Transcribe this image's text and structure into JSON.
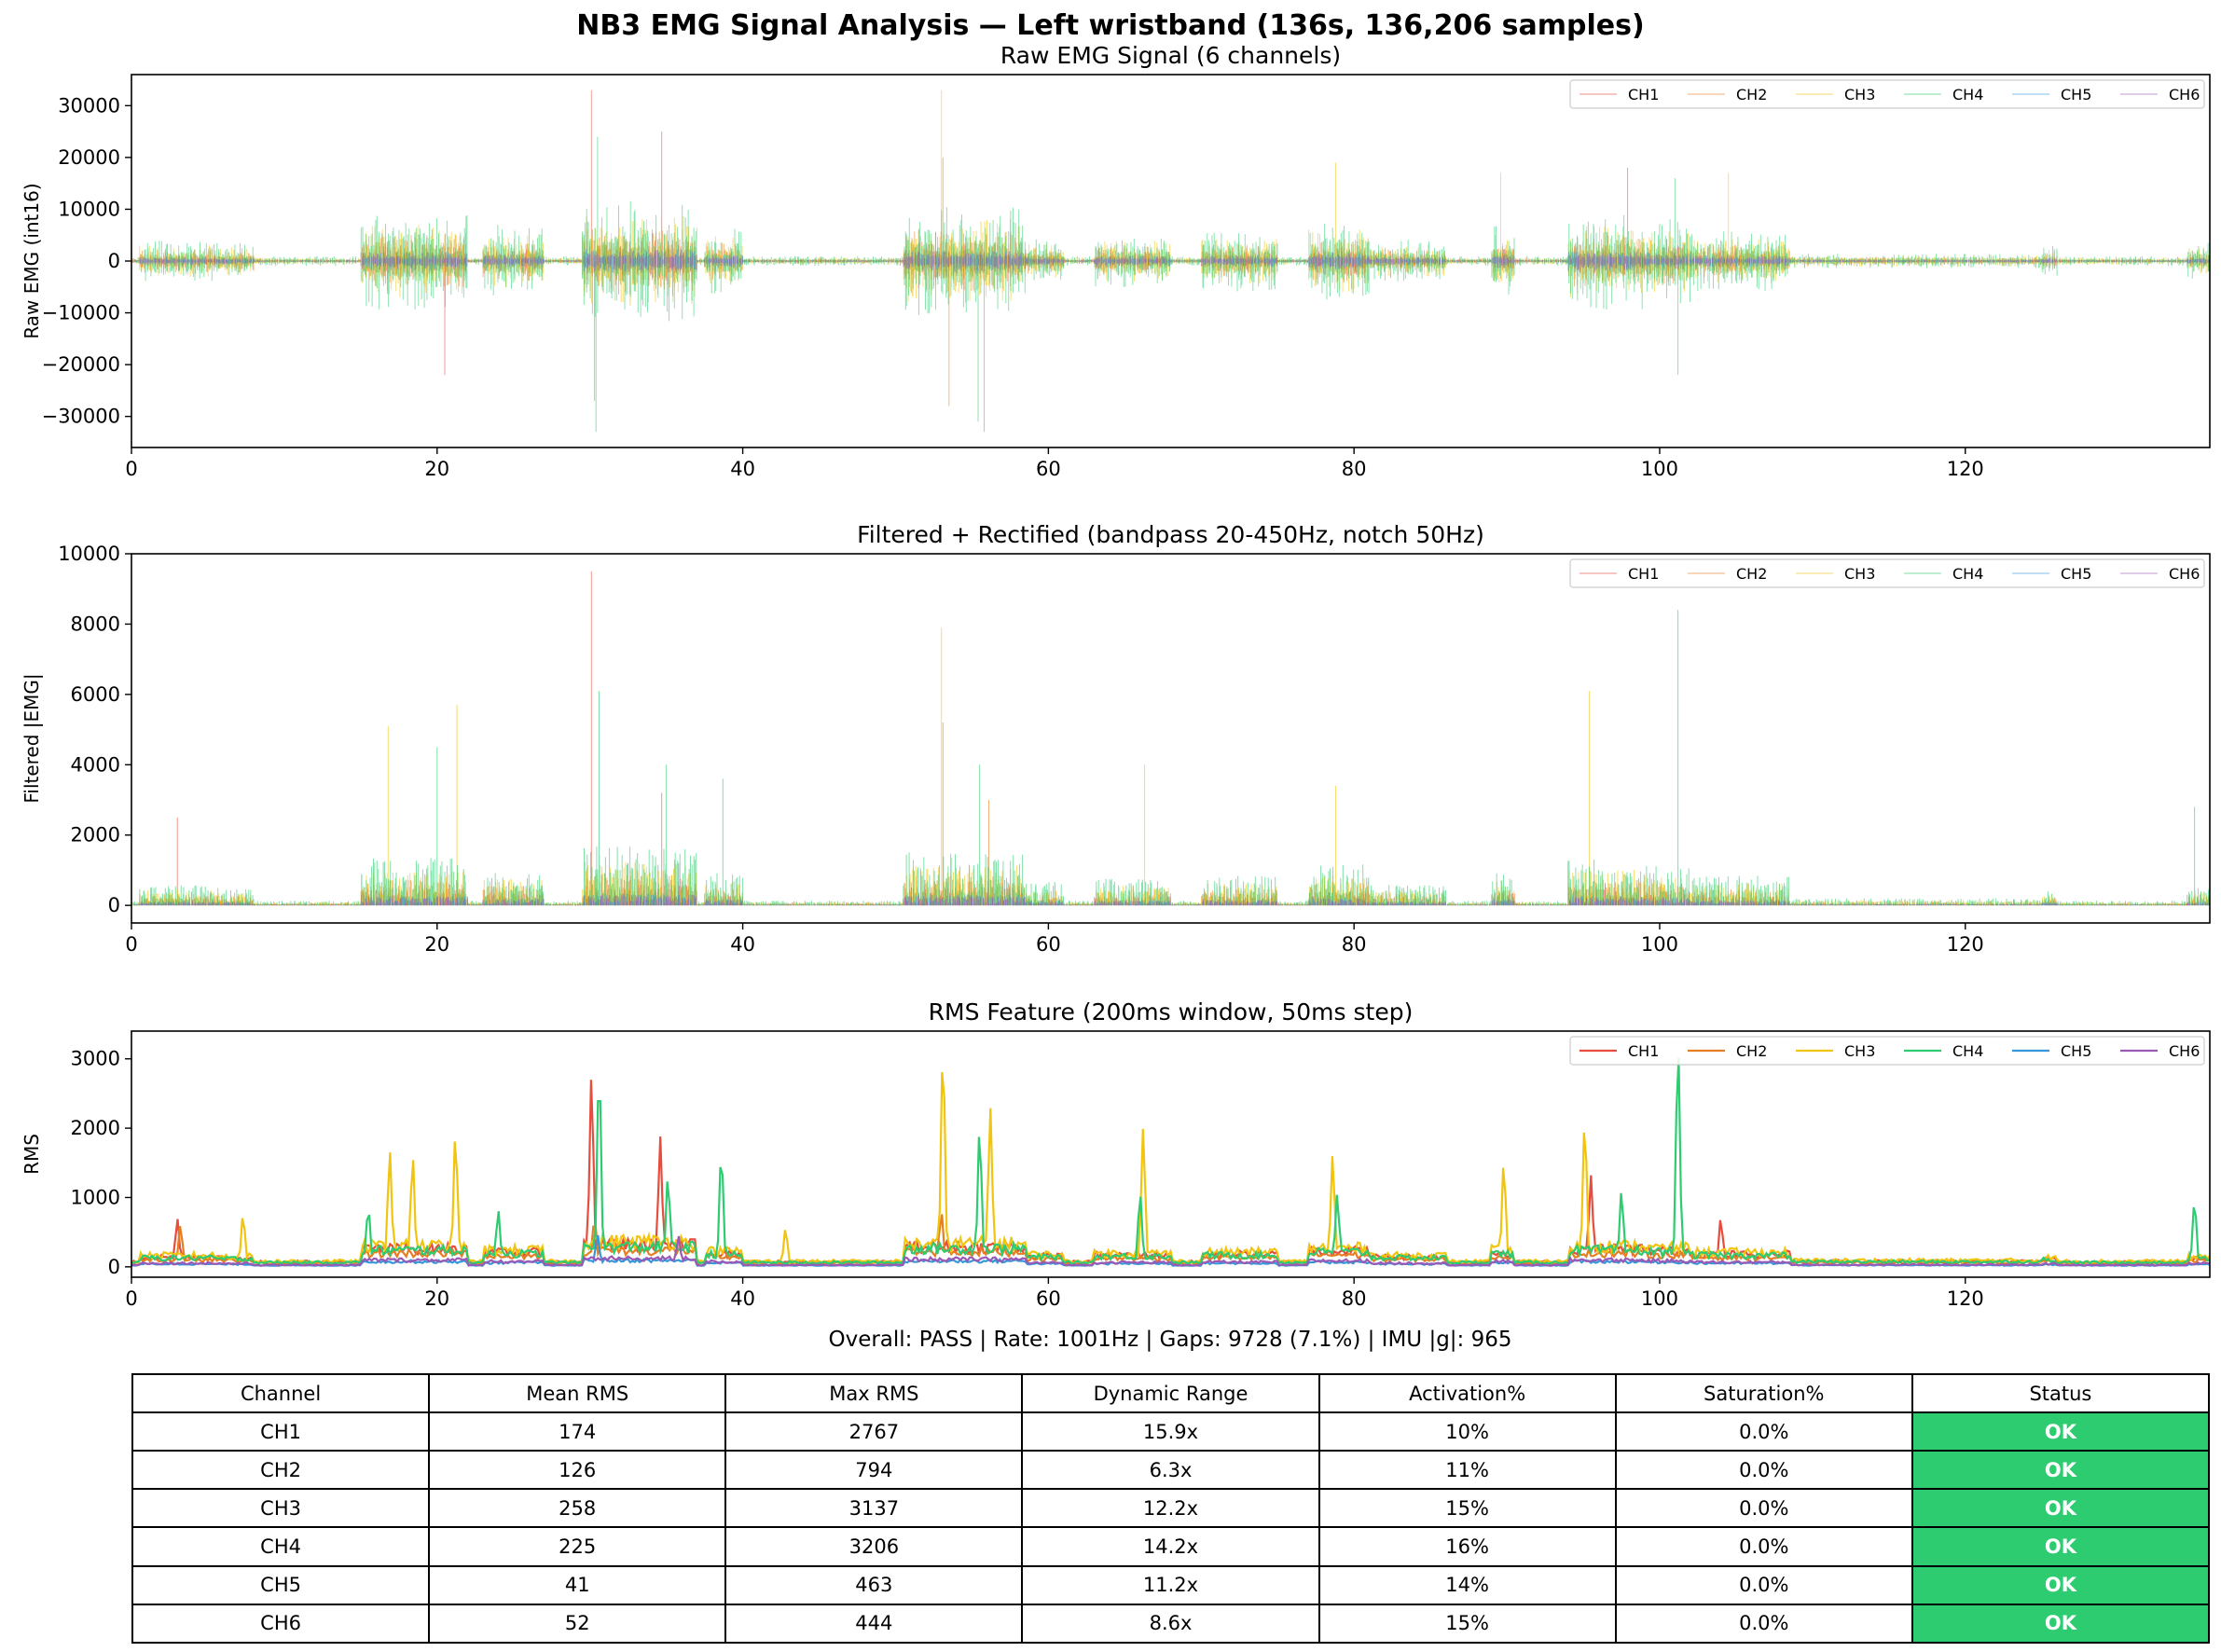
{
  "figure": {
    "title": "NB3 EMG Signal Analysis — Left wristband (136s, 136,206 samples)",
    "summary": "Overall: PASS | Rate: 1001Hz | Gaps: 9728 (7.1%) | IMU |g|: 965"
  },
  "chart_data": [
    {
      "type": "line",
      "title": "Raw EMG Signal (6 channels)",
      "xlabel": "",
      "ylabel": "Raw EMG (int16)",
      "xlim": [
        0,
        136
      ],
      "ylim": [
        -36000,
        36000
      ],
      "xticks": [
        0,
        20,
        40,
        60,
        80,
        100,
        120
      ],
      "yticks": [
        -30000,
        -20000,
        -10000,
        0,
        10000,
        20000,
        30000
      ],
      "legend": "top-right",
      "series": [
        {
          "name": "CH1",
          "color": "#e74c3c",
          "peak_at": [
            [
              20.5,
              -22000
            ],
            [
              30.1,
              33000
            ],
            [
              34.7,
              25000
            ],
            [
              97.9,
              18000
            ]
          ]
        },
        {
          "name": "CH2",
          "color": "#e67e22",
          "peak_at": [
            [
              30.3,
              -27000
            ],
            [
              53.1,
              20000
            ],
            [
              53.5,
              -28000
            ],
            [
              55.8,
              -33000
            ]
          ]
        },
        {
          "name": "CH3",
          "color": "#f1c40f",
          "peak_at": [
            [
              53.0,
              33000
            ],
            [
              78.8,
              19000
            ],
            [
              89.6,
              17000
            ],
            [
              104.5,
              17000
            ]
          ]
        },
        {
          "name": "CH4",
          "color": "#2ecc71",
          "peak_at": [
            [
              30.5,
              24000
            ],
            [
              30.4,
              -33000
            ],
            [
              55.4,
              -31000
            ],
            [
              101.0,
              16000
            ],
            [
              101.2,
              -22000
            ]
          ]
        },
        {
          "name": "CH5",
          "color": "#3498db",
          "peak_at": []
        },
        {
          "name": "CH6",
          "color": "#9b59b6",
          "peak_at": []
        }
      ]
    },
    {
      "type": "line",
      "title": "Filtered + Rectified (bandpass 20-450Hz, notch 50Hz)",
      "xlabel": "",
      "ylabel": "Filtered |EMG|",
      "xlim": [
        0,
        136
      ],
      "ylim": [
        -500,
        10000
      ],
      "xticks": [
        0,
        20,
        40,
        60,
        80,
        100,
        120
      ],
      "yticks": [
        0,
        2000,
        4000,
        6000,
        8000,
        10000
      ],
      "legend": "top-right",
      "series": [
        {
          "name": "CH1",
          "color": "#e74c3c",
          "peak_at": [
            [
              30.1,
              9500
            ],
            [
              3.0,
              2500
            ],
            [
              34.7,
              3200
            ]
          ]
        },
        {
          "name": "CH2",
          "color": "#e67e22",
          "peak_at": [
            [
              53.1,
              5200
            ],
            [
              56.1,
              3000
            ]
          ]
        },
        {
          "name": "CH3",
          "color": "#f1c40f",
          "peak_at": [
            [
              53.0,
              7900
            ],
            [
              95.4,
              6100
            ],
            [
              21.3,
              5700
            ],
            [
              16.8,
              5100
            ],
            [
              66.3,
              4000
            ],
            [
              78.8,
              3400
            ]
          ]
        },
        {
          "name": "CH4",
          "color": "#2ecc71",
          "peak_at": [
            [
              101.2,
              8400
            ],
            [
              30.6,
              6100
            ],
            [
              35.0,
              4000
            ],
            [
              20.0,
              4500
            ],
            [
              38.7,
              3600
            ],
            [
              55.5,
              4000
            ],
            [
              135.0,
              2800
            ]
          ]
        },
        {
          "name": "CH5",
          "color": "#3498db",
          "peak_at": []
        },
        {
          "name": "CH6",
          "color": "#9b59b6",
          "peak_at": [
            [
              35.8,
              1200
            ]
          ]
        }
      ]
    },
    {
      "type": "line",
      "title": "RMS Feature (200ms window, 50ms step)",
      "xlabel": "",
      "ylabel": "RMS",
      "xlim": [
        0,
        136
      ],
      "ylim": [
        -150,
        3400
      ],
      "xticks": [
        0,
        20,
        40,
        60,
        80,
        100,
        120
      ],
      "yticks": [
        0,
        1000,
        2000,
        3000
      ],
      "legend": "top-right",
      "series": [
        {
          "name": "CH1",
          "color": "#e74c3c",
          "peak_at": [
            [
              30.1,
              2767
            ],
            [
              34.6,
              1880
            ],
            [
              95.5,
              1320
            ],
            [
              3.0,
              700
            ],
            [
              104.0,
              700
            ]
          ]
        },
        {
          "name": "CH2",
          "color": "#e67e22",
          "peak_at": [
            [
              53.0,
              794
            ],
            [
              30.3,
              700
            ],
            [
              3.2,
              600
            ]
          ]
        },
        {
          "name": "CH3",
          "color": "#f1c40f",
          "peak_at": [
            [
              53.1,
              3137
            ],
            [
              56.2,
              2300
            ],
            [
              66.2,
              2000
            ],
            [
              95.1,
              2100
            ],
            [
              21.2,
              1920
            ],
            [
              16.9,
              1680
            ],
            [
              18.4,
              1600
            ],
            [
              78.6,
              1620
            ],
            [
              89.8,
              1500
            ],
            [
              7.3,
              750
            ],
            [
              42.8,
              550
            ]
          ]
        },
        {
          "name": "CH4",
          "color": "#2ecc71",
          "peak_at": [
            [
              101.2,
              3206
            ],
            [
              30.6,
              2850
            ],
            [
              55.5,
              1980
            ],
            [
              38.6,
              1650
            ],
            [
              35.1,
              1300
            ],
            [
              66.0,
              1050
            ],
            [
              78.9,
              1050
            ],
            [
              97.5,
              1100
            ],
            [
              135.0,
              950
            ],
            [
              15.5,
              850
            ],
            [
              24.0,
              820
            ]
          ]
        },
        {
          "name": "CH5",
          "color": "#3498db",
          "peak_at": [
            [
              30.5,
              463
            ]
          ]
        },
        {
          "name": "CH6",
          "color": "#9b59b6",
          "peak_at": [
            [
              35.8,
              444
            ]
          ]
        }
      ]
    },
    {
      "type": "table",
      "columns": [
        "Channel",
        "Mean RMS",
        "Max RMS",
        "Dynamic Range",
        "Activation%",
        "Saturation%",
        "Status"
      ],
      "status_color": "#2ecc71",
      "rows": [
        [
          "CH1",
          "174",
          "2767",
          "15.9x",
          "10%",
          "0.0%",
          "OK"
        ],
        [
          "CH2",
          "126",
          "794",
          "6.3x",
          "11%",
          "0.0%",
          "OK"
        ],
        [
          "CH3",
          "258",
          "3137",
          "12.2x",
          "15%",
          "0.0%",
          "OK"
        ],
        [
          "CH4",
          "225",
          "3206",
          "14.2x",
          "16%",
          "0.0%",
          "OK"
        ],
        [
          "CH5",
          "41",
          "463",
          "11.2x",
          "14%",
          "0.0%",
          "OK"
        ],
        [
          "CH6",
          "52",
          "444",
          "8.6x",
          "15%",
          "0.0%",
          "OK"
        ]
      ]
    }
  ]
}
